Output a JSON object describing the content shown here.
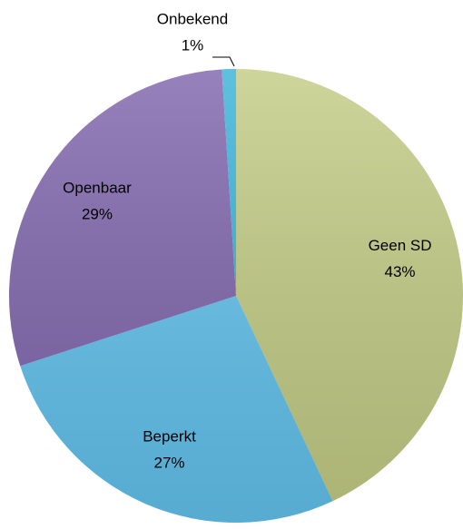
{
  "chart_data": {
    "type": "pie",
    "categories": [
      "Geen SD",
      "Beperkt",
      "Openbaar",
      "Onbekend"
    ],
    "values": [
      43,
      27,
      29,
      1
    ],
    "value_labels": [
      "43%",
      "27%",
      "29%",
      "1%"
    ],
    "colors": [
      "#c3cc85",
      "#63c3ee",
      "#8066ad",
      "#3bb3d8"
    ]
  }
}
